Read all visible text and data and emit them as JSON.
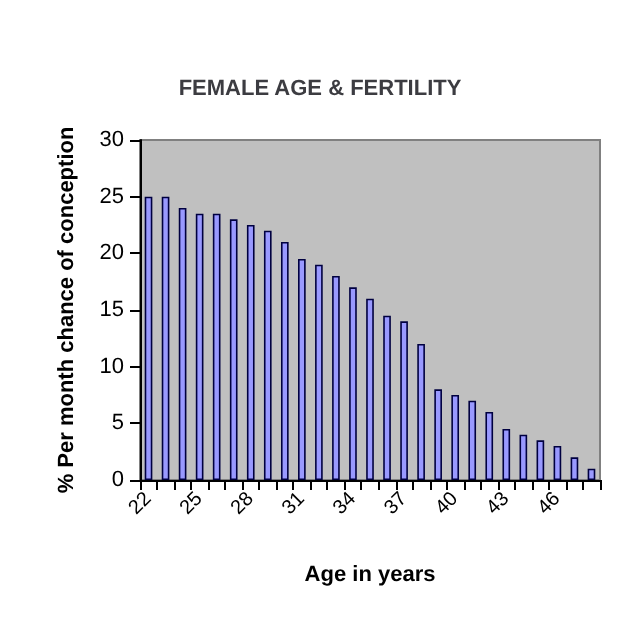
{
  "chart_data": {
    "type": "bar",
    "title": "FEMALE AGE & FERTILITY",
    "xlabel": "Age in years",
    "ylabel": "% Per month chance of conception",
    "categories": [
      "22",
      null,
      null,
      "25",
      null,
      null,
      "28",
      null,
      null,
      "31",
      null,
      null,
      "34",
      null,
      null,
      "37",
      null,
      null,
      "40",
      null,
      null,
      "43",
      null,
      null,
      "46",
      null,
      null
    ],
    "values": [
      25,
      25,
      24,
      23.5,
      23.5,
      23,
      22.5,
      22,
      21,
      19.5,
      19,
      18,
      17,
      16,
      14.5,
      14,
      12,
      8,
      7.5,
      7,
      6,
      4.5,
      4,
      3.5,
      3,
      2,
      1
    ],
    "color": "#9999ff",
    "ylim": [
      0,
      30
    ],
    "yticks": [
      0,
      5,
      10,
      15,
      20,
      25,
      30
    ],
    "grid": false
  }
}
